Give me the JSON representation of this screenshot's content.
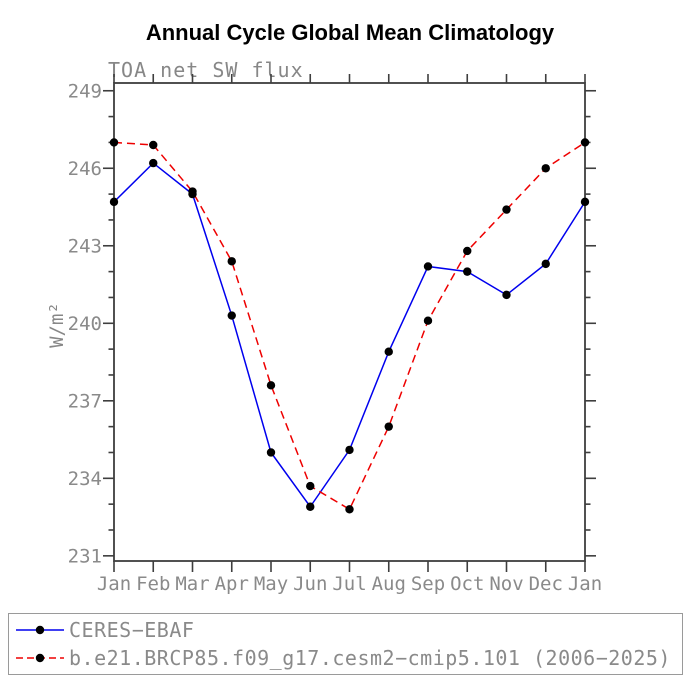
{
  "chart_data": {
    "type": "line",
    "title": "Annual Cycle Global Mean Climatology",
    "subtitle": "TOA net SW flux",
    "xlabel": "",
    "ylabel": "W/m²",
    "categories": [
      "Jan",
      "Feb",
      "Mar",
      "Apr",
      "May",
      "Jun",
      "Jul",
      "Aug",
      "Sep",
      "Oct",
      "Nov",
      "Dec",
      "Jan"
    ],
    "series": [
      {
        "name": "CERES−EBAF",
        "color": "#0000ee",
        "style": "solid",
        "marker": "black-dot",
        "values": [
          244.7,
          246.2,
          245.0,
          240.3,
          235.0,
          232.9,
          235.1,
          238.9,
          242.2,
          242.0,
          241.1,
          242.3,
          244.7
        ]
      },
      {
        "name": "b.e21.BRCP85.f09_g17.cesm2−cmip5.101 (2006−2025)",
        "color": "#ee0000",
        "style": "dashed",
        "marker": "black-dot",
        "values": [
          247.0,
          246.9,
          245.1,
          242.4,
          237.6,
          233.7,
          232.8,
          236.0,
          240.1,
          242.8,
          244.4,
          246.0,
          247.0
        ]
      }
    ],
    "ylim": [
      230.8,
      249.3
    ],
    "yticks_major": [
      231,
      234,
      237,
      240,
      243,
      246,
      249
    ],
    "ytick_minor_step": 1,
    "grid": false,
    "legend_position": "bottom-left-box"
  },
  "colors": {
    "axis": "#3e3e3e",
    "tick_text": "#8a8a8a",
    "marker": "#000000",
    "legend_border": "#9a9a9a",
    "background": "#ffffff"
  }
}
